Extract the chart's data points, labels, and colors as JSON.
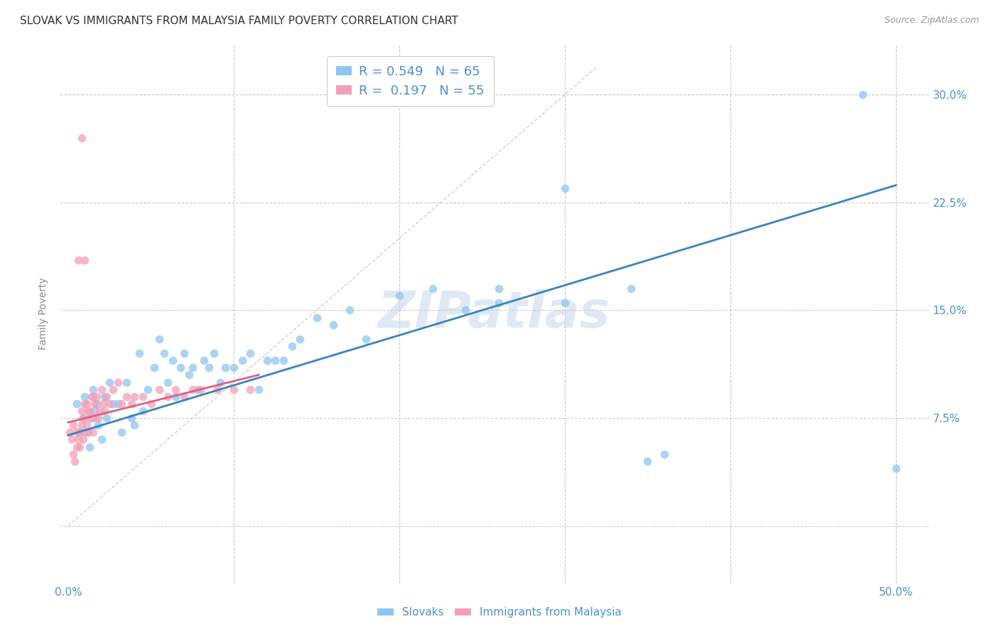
{
  "title": "SLOVAK VS IMMIGRANTS FROM MALAYSIA FAMILY POVERTY CORRELATION CHART",
  "source": "Source: ZipAtlas.com",
  "ylabel": "Family Poverty",
  "xlim": [
    -0.005,
    0.52
  ],
  "ylim": [
    -0.04,
    0.335
  ],
  "xtick_positions": [
    0.0,
    0.1,
    0.2,
    0.3,
    0.4,
    0.5
  ],
  "xticklabels": [
    "0.0%",
    "",
    "",
    "",
    "",
    "50.0%"
  ],
  "ytick_positions": [
    0.0,
    0.075,
    0.15,
    0.225,
    0.3
  ],
  "yticklabels_right": [
    "",
    "7.5%",
    "15.0%",
    "22.5%",
    "30.0%"
  ],
  "legend_labels_bottom": [
    "Slovaks",
    "Immigrants from Malaysia"
  ],
  "blue_scatter_color": "#8EC6F0",
  "pink_scatter_color": "#F2A0B8",
  "blue_line_color": "#3A82C4",
  "pink_line_color": "#E06080",
  "diagonal_line_color": "#C8C8C8",
  "grid_color": "#CCCCCC",
  "watermark": "ZIPatlas",
  "R_blue": 0.549,
  "N_blue": 65,
  "R_pink": 0.197,
  "N_pink": 55,
  "title_fontsize": 11,
  "axis_label_fontsize": 10,
  "tick_fontsize": 11,
  "legend_fontsize": 13,
  "bg_color": "#FFFFFF",
  "text_color_blue": "#4A90D9",
  "text_color_axis": "#888888",
  "blue_scatter_x": [
    0.005,
    0.007,
    0.009,
    0.01,
    0.012,
    0.013,
    0.014,
    0.015,
    0.016,
    0.017,
    0.018,
    0.02,
    0.022,
    0.023,
    0.025,
    0.027,
    0.03,
    0.032,
    0.035,
    0.038,
    0.04,
    0.043,
    0.045,
    0.048,
    0.052,
    0.055,
    0.058,
    0.06,
    0.063,
    0.065,
    0.068,
    0.07,
    0.073,
    0.075,
    0.078,
    0.082,
    0.085,
    0.088,
    0.092,
    0.095,
    0.1,
    0.105,
    0.11,
    0.115,
    0.12,
    0.125,
    0.13,
    0.135,
    0.14,
    0.15,
    0.16,
    0.17,
    0.18,
    0.2,
    0.22,
    0.24,
    0.26,
    0.3,
    0.34,
    0.36,
    0.3,
    0.26,
    0.48,
    0.35,
    0.5
  ],
  "blue_scatter_y": [
    0.085,
    0.065,
    0.075,
    0.09,
    0.065,
    0.055,
    0.075,
    0.095,
    0.08,
    0.085,
    0.07,
    0.06,
    0.09,
    0.075,
    0.1,
    0.085,
    0.085,
    0.065,
    0.1,
    0.075,
    0.07,
    0.12,
    0.08,
    0.095,
    0.11,
    0.13,
    0.12,
    0.1,
    0.115,
    0.09,
    0.11,
    0.12,
    0.105,
    0.11,
    0.095,
    0.115,
    0.11,
    0.12,
    0.1,
    0.11,
    0.11,
    0.115,
    0.12,
    0.095,
    0.115,
    0.115,
    0.115,
    0.125,
    0.13,
    0.145,
    0.14,
    0.15,
    0.13,
    0.16,
    0.165,
    0.15,
    0.155,
    0.155,
    0.165,
    0.05,
    0.235,
    0.165,
    0.3,
    0.045,
    0.04
  ],
  "pink_scatter_x": [
    0.001,
    0.002,
    0.003,
    0.003,
    0.004,
    0.005,
    0.005,
    0.006,
    0.007,
    0.007,
    0.008,
    0.008,
    0.009,
    0.009,
    0.01,
    0.01,
    0.011,
    0.011,
    0.012,
    0.012,
    0.013,
    0.013,
    0.014,
    0.015,
    0.015,
    0.016,
    0.016,
    0.017,
    0.018,
    0.019,
    0.02,
    0.021,
    0.022,
    0.023,
    0.025,
    0.027,
    0.03,
    0.032,
    0.035,
    0.038,
    0.04,
    0.045,
    0.05,
    0.055,
    0.06,
    0.065,
    0.07,
    0.075,
    0.08,
    0.09,
    0.1,
    0.11,
    0.01,
    0.008,
    0.006
  ],
  "pink_scatter_y": [
    0.065,
    0.06,
    0.05,
    0.07,
    0.045,
    0.055,
    0.065,
    0.06,
    0.065,
    0.055,
    0.08,
    0.07,
    0.075,
    0.06,
    0.085,
    0.065,
    0.085,
    0.07,
    0.08,
    0.065,
    0.08,
    0.075,
    0.09,
    0.09,
    0.065,
    0.085,
    0.075,
    0.09,
    0.075,
    0.08,
    0.095,
    0.085,
    0.08,
    0.09,
    0.085,
    0.095,
    0.1,
    0.085,
    0.09,
    0.085,
    0.09,
    0.09,
    0.085,
    0.095,
    0.09,
    0.095,
    0.09,
    0.095,
    0.095,
    0.095,
    0.095,
    0.095,
    0.185,
    0.27,
    0.185
  ],
  "blue_line_x": [
    0.0,
    0.5
  ],
  "blue_line_y": [
    0.063,
    0.237
  ],
  "pink_line_x": [
    0.0,
    0.115
  ],
  "pink_line_y": [
    0.072,
    0.105
  ]
}
